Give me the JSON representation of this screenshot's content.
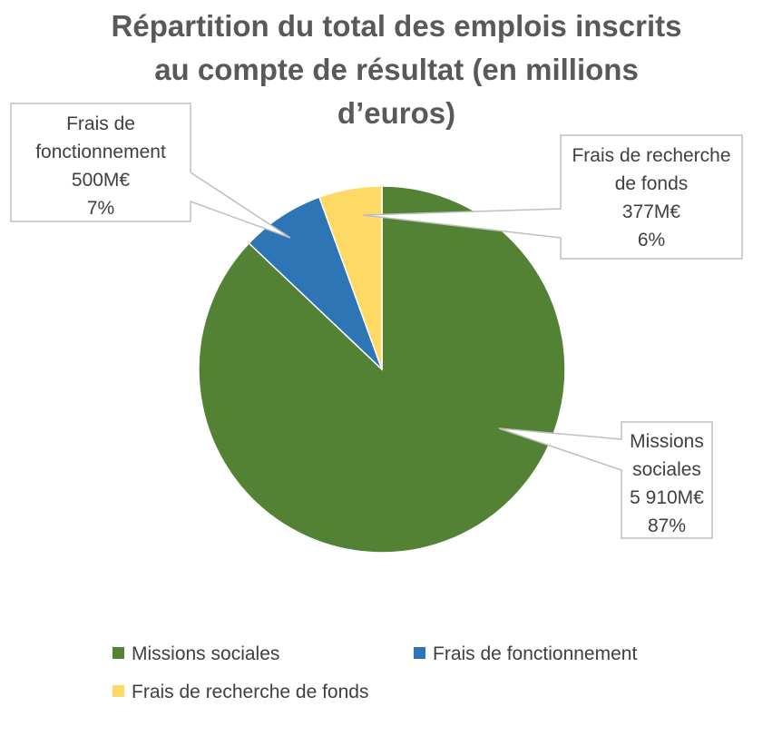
{
  "chart_data": {
    "type": "pie",
    "title_lines": [
      "Répartition du total des emplois inscrits",
      "au compte de résultat (en millions",
      "d’euros)"
    ],
    "series": [
      {
        "name": "Missions sociales",
        "value": 5910,
        "value_label": "5 910M€",
        "percent_label": "87%",
        "color": "#548235"
      },
      {
        "name": "Frais de fonctionnement",
        "value": 500,
        "value_label": "500M€",
        "percent_label": "7%",
        "color": "#2E75B6"
      },
      {
        "name": "Frais de recherche de fonds",
        "value": 377,
        "value_label": "377M€",
        "percent_label": "6%",
        "color": "#FFD966"
      }
    ],
    "callouts": [
      {
        "lines": [
          "Missions",
          "sociales",
          "5 910M€",
          "87%"
        ]
      },
      {
        "lines": [
          "Frais de",
          "fonctionnement",
          "500M€",
          "7%"
        ]
      },
      {
        "lines": [
          "Frais de recherche",
          "de fonds",
          "377M€",
          "6%"
        ]
      }
    ],
    "legend": [
      "Missions sociales",
      "Frais de fonctionnement",
      "Frais de recherche de fonds"
    ],
    "legend_position": "bottom"
  }
}
